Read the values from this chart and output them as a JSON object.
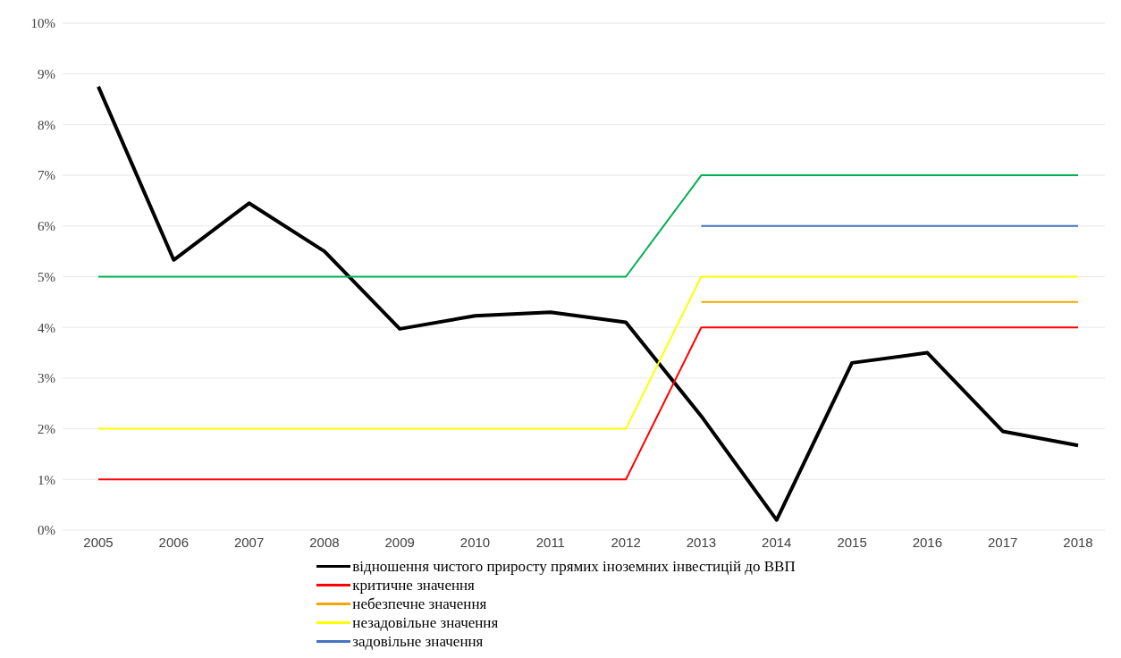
{
  "chart_data": {
    "type": "line",
    "categories": [
      "2005",
      "2006",
      "2007",
      "2008",
      "2009",
      "2010",
      "2011",
      "2012",
      "2013",
      "2014",
      "2015",
      "2016",
      "2017",
      "2018"
    ],
    "series": [
      {
        "name": "відношення чистого приросту прямих іноземних інвестицій до ВВП",
        "color": "#000000",
        "values": [
          8.75,
          5.33,
          6.45,
          5.5,
          3.97,
          4.23,
          4.3,
          4.1,
          2.25,
          0.2,
          3.3,
          3.5,
          1.95,
          1.67
        ]
      },
      {
        "name": "критичне значення",
        "color": "#ff0000",
        "values": [
          1,
          1,
          1,
          1,
          1,
          1,
          1,
          1,
          4,
          4,
          4,
          4,
          4,
          4
        ]
      },
      {
        "name": "небезпечне значення",
        "color": "#f0a800",
        "values": [
          null,
          null,
          null,
          null,
          null,
          null,
          null,
          null,
          4.5,
          4.5,
          4.5,
          4.5,
          4.5,
          4.5
        ]
      },
      {
        "name": "незадовільне значення",
        "color": "#ffff00",
        "values": [
          2,
          2,
          2,
          2,
          2,
          2,
          2,
          2,
          5,
          5,
          5,
          5,
          5,
          5
        ]
      },
      {
        "name": "задовільне значення",
        "color": "#4472c4",
        "values": [
          null,
          null,
          null,
          null,
          null,
          null,
          null,
          null,
          6,
          6,
          6,
          6,
          6,
          6
        ]
      },
      {
        "color": "#00b050",
        "values": [
          5,
          5,
          5,
          5,
          5,
          5,
          5,
          5,
          7,
          7,
          7,
          7,
          7,
          7
        ]
      }
    ],
    "ylim": [
      0,
      10
    ],
    "yticks": [
      {
        "value": 0,
        "label": "0%"
      },
      {
        "value": 1,
        "label": "1%"
      },
      {
        "value": 2,
        "label": "2%"
      },
      {
        "value": 3,
        "label": "3%"
      },
      {
        "value": 4,
        "label": "4%"
      },
      {
        "value": 5,
        "label": "5%"
      },
      {
        "value": 6,
        "label": "6%"
      },
      {
        "value": 7,
        "label": "7%"
      },
      {
        "value": 8,
        "label": "8%"
      },
      {
        "value": 9,
        "label": "9%"
      },
      {
        "value": 10,
        "label": "10%"
      }
    ],
    "grid": "y",
    "legend": "bottom",
    "marker": "none",
    "line_style": "solid"
  }
}
